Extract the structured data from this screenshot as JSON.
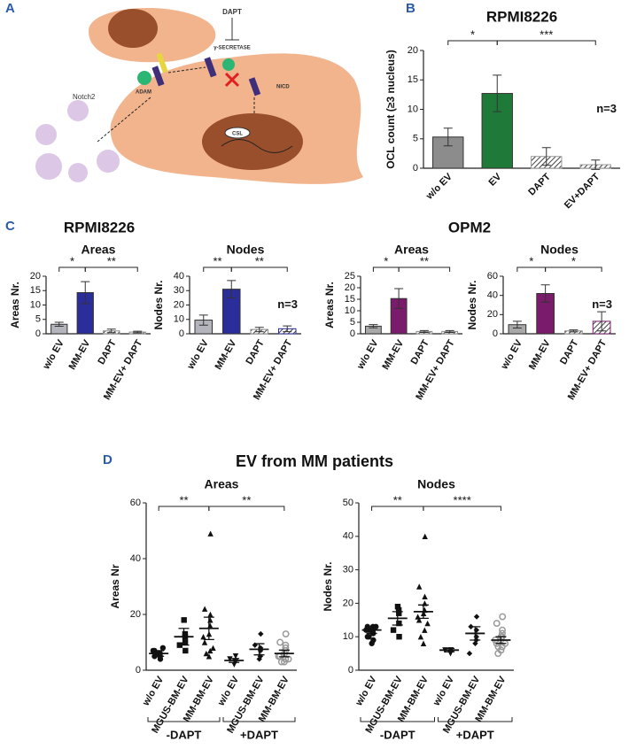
{
  "panel_labels": [
    "A",
    "B",
    "C",
    "D"
  ],
  "diagram": {
    "dapt": "DAPT",
    "secretase": "γ-SECRETASE",
    "adam": "ADAM",
    "nicd": "NICD",
    "notch2": "Notch2",
    "csl": "CSL"
  },
  "panel_c_titles": [
    "RPMI8226",
    "OPM2"
  ],
  "panel_d_title": "EV from MM patients",
  "chart_data": [
    {
      "type": "bar",
      "title": "RPMI8226",
      "ylabel": "OCL count (≥3 nucleus)",
      "categories": [
        "w/o EV",
        "EV",
        "DAPT",
        "EV+DAPT"
      ],
      "values": [
        5.3,
        12.7,
        2,
        0.6
      ],
      "errors": [
        1.5,
        3.1,
        1.5,
        0.8
      ],
      "colors": [
        "#8c8c8c",
        "#1f7a3a",
        "#9a9a9a",
        "#9a9a9a"
      ],
      "hatched": [
        false,
        false,
        true,
        true
      ],
      "ylim": [
        0,
        20
      ],
      "yticks": [
        0,
        5,
        10,
        15,
        20
      ],
      "annotation": "n=3",
      "significance": [
        {
          "label": "*",
          "from": 0,
          "to": 1
        },
        {
          "label": "***",
          "from": 1,
          "to": 3
        }
      ]
    },
    {
      "type": "bar",
      "title": "Areas",
      "ylabel": "Areas Nr.",
      "categories": [
        "w/o EV",
        "MM-EV",
        "DAPT",
        "MM-EV+ DAPT"
      ],
      "values": [
        3.3,
        14.3,
        1.0,
        0.6
      ],
      "errors": [
        0.7,
        3.8,
        0.6,
        0.3
      ],
      "colors": [
        "#b4b4bc",
        "#2b2e9a",
        "#8a8a8a",
        "#8a8a8a"
      ],
      "hatched": [
        false,
        false,
        true,
        true
      ],
      "ylim": [
        0,
        20
      ],
      "yticks": [
        0,
        5,
        10,
        15,
        20
      ],
      "significance": [
        {
          "label": "*",
          "from": 0,
          "to": 1
        },
        {
          "label": "**",
          "from": 1,
          "to": 3
        }
      ]
    },
    {
      "type": "bar",
      "title": "Nodes",
      "ylabel": "Nodes Nr.",
      "categories": [
        "w/o EV",
        "MM-EV",
        "DAPT",
        "MM-EV+ DAPT"
      ],
      "values": [
        9.5,
        31,
        3,
        3.5
      ],
      "errors": [
        3.5,
        6,
        1.5,
        2
      ],
      "colors": [
        "#b4b4bc",
        "#2b2e9a",
        "#8a8a8a",
        "#2b2e9a"
      ],
      "hatched": [
        false,
        false,
        true,
        true
      ],
      "ylim": [
        0,
        40
      ],
      "yticks": [
        0,
        10,
        20,
        30,
        40
      ],
      "annotation": "n=3",
      "significance": [
        {
          "label": "**",
          "from": 0,
          "to": 1
        },
        {
          "label": "**",
          "from": 1,
          "to": 3
        }
      ]
    },
    {
      "type": "bar",
      "title": "Areas",
      "ylabel": "Areas Nr.",
      "categories": [
        "w/o EV",
        "MM-EV",
        "DAPT",
        "MM-EV+ DAPT"
      ],
      "values": [
        3.3,
        15.3,
        1,
        1
      ],
      "errors": [
        0.7,
        4.3,
        0.4,
        0.4
      ],
      "colors": [
        "#a8a8a8",
        "#7a1b6b",
        "#8a8a8a",
        "#8a8a8a"
      ],
      "hatched": [
        false,
        false,
        true,
        true
      ],
      "ylim": [
        0,
        25
      ],
      "yticks": [
        0,
        5,
        10,
        15,
        20,
        25
      ],
      "significance": [
        {
          "label": "*",
          "from": 0,
          "to": 1
        },
        {
          "label": "**",
          "from": 1,
          "to": 3
        }
      ]
    },
    {
      "type": "bar",
      "title": "Nodes",
      "ylabel": "Nodes Nr.",
      "categories": [
        "w/o EV",
        "MM-EV",
        "DAPT",
        "MM-EV+ DAPT"
      ],
      "values": [
        9.5,
        42,
        3,
        13
      ],
      "errors": [
        3.5,
        9,
        1,
        10
      ],
      "colors": [
        "#a8a8a8",
        "#7a1b6b",
        "#8a8a8a",
        "#7a1b6b"
      ],
      "hatched": [
        false,
        false,
        true,
        true
      ],
      "ylim": [
        0,
        60
      ],
      "yticks": [
        0,
        20,
        40,
        60
      ],
      "annotation": "n=3",
      "significance": [
        {
          "label": "*",
          "from": 0,
          "to": 1
        },
        {
          "label": "*",
          "from": 1,
          "to": 3
        }
      ]
    },
    {
      "type": "dot",
      "title": "Areas",
      "ylabel": "Areas Nr",
      "categories": [
        "w/o EV",
        "MGUS-BM-EV",
        "MM-BM-EV",
        "w/o EV",
        "MGUS-BM-EV",
        "MM-BM-EV"
      ],
      "groups": [
        "-DAPT",
        "+DAPT"
      ],
      "markers": [
        "circle",
        "square",
        "triangle",
        "triangle-down",
        "diamond",
        "circle-open"
      ],
      "points": [
        [
          4,
          5,
          5,
          6,
          6,
          6,
          7,
          7,
          8
        ],
        [
          7,
          9,
          10,
          12,
          13,
          18
        ],
        [
          49,
          22,
          20,
          18,
          16,
          13,
          12,
          10,
          8,
          7,
          6,
          5
        ],
        [
          5,
          4,
          3,
          3,
          3,
          2
        ],
        [
          13,
          9,
          8,
          7,
          5,
          4
        ],
        [
          13,
          10,
          9,
          8,
          7,
          6,
          5,
          5,
          4,
          4,
          3,
          3
        ]
      ],
      "means": [
        6,
        12,
        15,
        3.5,
        7.5,
        6
      ],
      "sem": [
        1,
        3,
        4,
        0.7,
        2,
        1.2
      ],
      "ylim": [
        0,
        60
      ],
      "yticks": [
        0,
        20,
        40,
        60
      ],
      "significance": [
        {
          "label": "**",
          "from": 0,
          "to": 2
        },
        {
          "label": "**",
          "from": 2,
          "to": 5
        }
      ]
    },
    {
      "type": "dot",
      "title": "Nodes",
      "ylabel": "Nodes Nr.",
      "categories": [
        "w/o EV",
        "MGUS-BM-EV",
        "MM-BM-EV",
        "w/o EV",
        "MGUS-BM-EV",
        "MM-BM-EV"
      ],
      "groups": [
        "-DAPT",
        "+DAPT"
      ],
      "markers": [
        "circle",
        "square",
        "triangle",
        "triangle-down",
        "diamond",
        "circle-open"
      ],
      "points": [
        [
          9,
          10,
          11,
          11,
          12,
          12,
          12,
          13,
          13,
          13,
          12,
          8,
          10
        ],
        [
          10,
          12,
          14,
          17,
          18,
          19
        ],
        [
          40,
          25,
          22,
          20,
          18,
          17,
          16,
          15,
          14,
          12,
          10,
          8
        ],
        [
          6,
          6,
          6,
          5,
          5
        ],
        [
          16,
          13,
          12,
          10,
          9,
          8,
          5
        ],
        [
          16,
          14,
          12,
          11,
          10,
          10,
          9,
          8,
          8,
          7,
          7,
          6,
          5
        ]
      ],
      "means": [
        12,
        15.5,
        17.5,
        6,
        11,
        9
      ],
      "sem": [
        1,
        2,
        2,
        0.5,
        2,
        1
      ],
      "ylim": [
        0,
        50
      ],
      "yticks": [
        0,
        10,
        20,
        30,
        40,
        50
      ],
      "significance": [
        {
          "label": "**",
          "from": 0,
          "to": 2
        },
        {
          "label": "****",
          "from": 2,
          "to": 5
        }
      ]
    }
  ]
}
